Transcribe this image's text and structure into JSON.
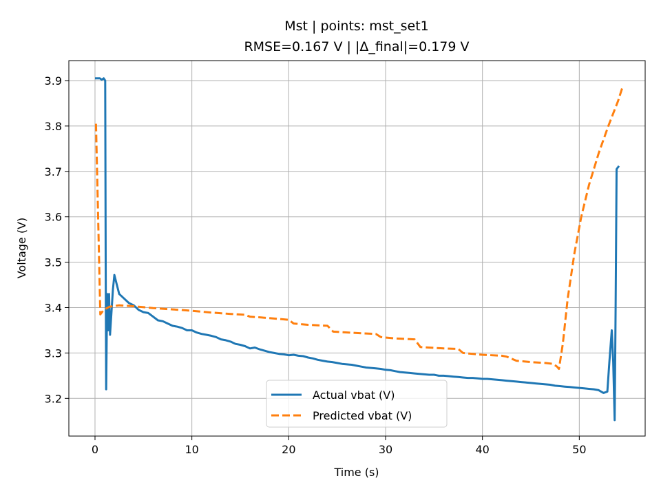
{
  "chart_data": {
    "type": "line",
    "title": "Mst | points: mst_set1",
    "subtitle": "RMSE=0.167 V | |Δ_final|=0.179 V",
    "xlabel": "Time (s)",
    "ylabel": "Voltage (V)",
    "xlim": [
      -2.7,
      56.8
    ],
    "ylim": [
      3.117,
      3.944
    ],
    "xticks": [
      0,
      10,
      20,
      30,
      40,
      50
    ],
    "yticks": [
      3.2,
      3.3,
      3.4,
      3.5,
      3.6,
      3.7,
      3.8,
      3.9
    ],
    "grid": true,
    "legend_position": "lower-center",
    "series": [
      {
        "name": "Actual vbat (V)",
        "color": "#1f77b4",
        "style": "solid",
        "points": [
          [
            0.0,
            3.905
          ],
          [
            0.5,
            3.905
          ],
          [
            0.7,
            3.902
          ],
          [
            0.9,
            3.905
          ],
          [
            1.05,
            3.9
          ],
          [
            1.1,
            3.5
          ],
          [
            1.15,
            3.22
          ],
          [
            1.25,
            3.43
          ],
          [
            1.35,
            3.35
          ],
          [
            1.45,
            3.43
          ],
          [
            1.55,
            3.34
          ],
          [
            1.7,
            3.39
          ],
          [
            1.85,
            3.44
          ],
          [
            2.0,
            3.472
          ],
          [
            2.2,
            3.455
          ],
          [
            2.5,
            3.43
          ],
          [
            3.0,
            3.42
          ],
          [
            3.5,
            3.41
          ],
          [
            4.0,
            3.405
          ],
          [
            4.5,
            3.395
          ],
          [
            5.0,
            3.39
          ],
          [
            5.5,
            3.388
          ],
          [
            6.0,
            3.38
          ],
          [
            6.5,
            3.372
          ],
          [
            7.0,
            3.37
          ],
          [
            7.5,
            3.365
          ],
          [
            8.0,
            3.36
          ],
          [
            8.5,
            3.358
          ],
          [
            9.0,
            3.355
          ],
          [
            9.5,
            3.35
          ],
          [
            10.0,
            3.35
          ],
          [
            10.5,
            3.345
          ],
          [
            11.0,
            3.342
          ],
          [
            11.5,
            3.34
          ],
          [
            12.0,
            3.338
          ],
          [
            12.5,
            3.335
          ],
          [
            13.0,
            3.33
          ],
          [
            13.5,
            3.328
          ],
          [
            14.0,
            3.325
          ],
          [
            14.5,
            3.32
          ],
          [
            15.0,
            3.318
          ],
          [
            15.5,
            3.315
          ],
          [
            16.0,
            3.31
          ],
          [
            16.5,
            3.312
          ],
          [
            17.0,
            3.308
          ],
          [
            17.5,
            3.305
          ],
          [
            18.0,
            3.302
          ],
          [
            18.5,
            3.3
          ],
          [
            19.0,
            3.298
          ],
          [
            19.5,
            3.297
          ],
          [
            20.0,
            3.295
          ],
          [
            20.5,
            3.296
          ],
          [
            21.0,
            3.294
          ],
          [
            21.5,
            3.293
          ],
          [
            22.0,
            3.29
          ],
          [
            22.5,
            3.288
          ],
          [
            23.0,
            3.285
          ],
          [
            23.5,
            3.283
          ],
          [
            24.0,
            3.281
          ],
          [
            24.5,
            3.28
          ],
          [
            25.0,
            3.278
          ],
          [
            25.5,
            3.276
          ],
          [
            26.0,
            3.275
          ],
          [
            26.5,
            3.274
          ],
          [
            27.0,
            3.272
          ],
          [
            27.5,
            3.27
          ],
          [
            28.0,
            3.268
          ],
          [
            28.5,
            3.267
          ],
          [
            29.0,
            3.266
          ],
          [
            29.5,
            3.265
          ],
          [
            30.0,
            3.263
          ],
          [
            30.5,
            3.262
          ],
          [
            31.0,
            3.26
          ],
          [
            31.5,
            3.258
          ],
          [
            32.0,
            3.257
          ],
          [
            32.5,
            3.256
          ],
          [
            33.0,
            3.255
          ],
          [
            33.5,
            3.254
          ],
          [
            34.0,
            3.253
          ],
          [
            34.5,
            3.252
          ],
          [
            35.0,
            3.252
          ],
          [
            35.5,
            3.25
          ],
          [
            36.0,
            3.25
          ],
          [
            36.5,
            3.249
          ],
          [
            37.0,
            3.248
          ],
          [
            37.5,
            3.247
          ],
          [
            38.0,
            3.246
          ],
          [
            38.5,
            3.245
          ],
          [
            39.0,
            3.245
          ],
          [
            39.5,
            3.244
          ],
          [
            40.0,
            3.243
          ],
          [
            40.5,
            3.243
          ],
          [
            41.0,
            3.242
          ],
          [
            41.5,
            3.241
          ],
          [
            42.0,
            3.24
          ],
          [
            42.5,
            3.239
          ],
          [
            43.0,
            3.238
          ],
          [
            43.5,
            3.237
          ],
          [
            44.0,
            3.236
          ],
          [
            44.5,
            3.235
          ],
          [
            45.0,
            3.234
          ],
          [
            45.5,
            3.233
          ],
          [
            46.0,
            3.232
          ],
          [
            46.5,
            3.231
          ],
          [
            47.0,
            3.23
          ],
          [
            47.5,
            3.228
          ],
          [
            48.0,
            3.227
          ],
          [
            48.5,
            3.226
          ],
          [
            49.0,
            3.225
          ],
          [
            49.5,
            3.224
          ],
          [
            50.0,
            3.223
          ],
          [
            50.5,
            3.222
          ],
          [
            51.0,
            3.221
          ],
          [
            51.5,
            3.22
          ],
          [
            52.0,
            3.218
          ],
          [
            52.5,
            3.212
          ],
          [
            52.9,
            3.215
          ],
          [
            53.1,
            3.28
          ],
          [
            53.35,
            3.35
          ],
          [
            53.5,
            3.28
          ],
          [
            53.65,
            3.152
          ],
          [
            53.75,
            3.4
          ],
          [
            53.85,
            3.705
          ],
          [
            54.1,
            3.712
          ]
        ]
      },
      {
        "name": "Predicted vbat (V)",
        "color": "#ff7f0e",
        "style": "dashed",
        "points": [
          [
            0.1,
            3.805
          ],
          [
            0.3,
            3.62
          ],
          [
            0.55,
            3.385
          ],
          [
            0.9,
            3.395
          ],
          [
            1.5,
            3.402
          ],
          [
            2.5,
            3.405
          ],
          [
            4.0,
            3.403
          ],
          [
            6.0,
            3.399
          ],
          [
            8.0,
            3.396
          ],
          [
            10.0,
            3.393
          ],
          [
            12.0,
            3.389
          ],
          [
            14.0,
            3.386
          ],
          [
            15.5,
            3.384
          ],
          [
            16.0,
            3.38
          ],
          [
            18.0,
            3.377
          ],
          [
            20.0,
            3.373
          ],
          [
            20.5,
            3.365
          ],
          [
            22.0,
            3.362
          ],
          [
            24.0,
            3.36
          ],
          [
            24.6,
            3.347
          ],
          [
            27.0,
            3.344
          ],
          [
            29.0,
            3.342
          ],
          [
            29.5,
            3.335
          ],
          [
            31.0,
            3.332
          ],
          [
            33.0,
            3.33
          ],
          [
            33.6,
            3.313
          ],
          [
            36.0,
            3.31
          ],
          [
            37.5,
            3.309
          ],
          [
            38.0,
            3.3
          ],
          [
            40.0,
            3.296
          ],
          [
            42.0,
            3.294
          ],
          [
            42.5,
            3.292
          ],
          [
            43.5,
            3.283
          ],
          [
            45.0,
            3.28
          ],
          [
            46.5,
            3.278
          ],
          [
            47.3,
            3.276
          ],
          [
            47.7,
            3.27
          ],
          [
            47.9,
            3.265
          ],
          [
            48.3,
            3.32
          ],
          [
            48.8,
            3.42
          ],
          [
            49.5,
            3.52
          ],
          [
            50.2,
            3.6
          ],
          [
            51.0,
            3.67
          ],
          [
            52.0,
            3.74
          ],
          [
            53.0,
            3.8
          ],
          [
            54.0,
            3.855
          ],
          [
            54.5,
            3.888
          ]
        ]
      }
    ]
  }
}
